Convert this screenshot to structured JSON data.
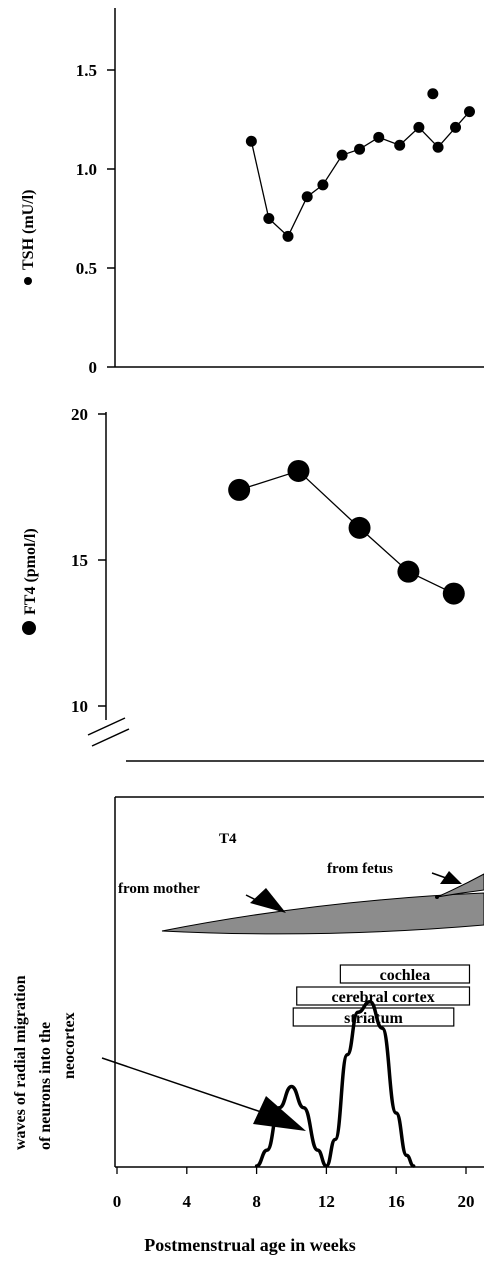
{
  "chart_data": [
    {
      "type": "line",
      "ylabel": "TSH (mU/l)",
      "ylabel_marker": "small-filled-circle",
      "ylim": [
        0,
        1.8
      ],
      "yticks": [
        "0",
        "0.5",
        "1.0",
        "1.5"
      ],
      "xlim": [
        0,
        21
      ],
      "series": [
        {
          "points": [
            {
              "x": 7.7,
              "y": 1.14
            },
            {
              "x": 8.7,
              "y": 0.75
            },
            {
              "x": 9.8,
              "y": 0.66
            },
            {
              "x": 10.9,
              "y": 0.86
            },
            {
              "x": 11.8,
              "y": 0.92
            },
            {
              "x": 12.9,
              "y": 1.07
            },
            {
              "x": 13.9,
              "y": 1.1
            },
            {
              "x": 15.0,
              "y": 1.16
            },
            {
              "x": 16.2,
              "y": 1.12
            },
            {
              "x": 17.3,
              "y": 1.21
            },
            {
              "x": 18.4,
              "y": 1.11
            },
            {
              "x": 19.4,
              "y": 1.21
            },
            {
              "x": 20.2,
              "y": 1.29
            }
          ]
        },
        {
          "points": [
            {
              "x": 18.1,
              "y": 1.38
            }
          ],
          "connected": false
        }
      ]
    },
    {
      "type": "line",
      "ylabel": "FT4 (pmol/l)",
      "ylabel_marker": "large-filled-circle",
      "ylim": [
        10,
        20
      ],
      "yticks": [
        "10",
        "15",
        "20"
      ],
      "axis_break": true,
      "xlim": [
        0,
        21
      ],
      "series": [
        {
          "points": [
            {
              "x": 7.0,
              "y": 17.4
            },
            {
              "x": 10.4,
              "y": 18.05
            },
            {
              "x": 13.9,
              "y": 16.1
            },
            {
              "x": 16.7,
              "y": 14.6
            },
            {
              "x": 19.3,
              "y": 13.85
            }
          ]
        }
      ]
    },
    {
      "type": "line",
      "ylabel": "waves of radial migration of neurons into the neocortex",
      "ylabel_lines": [
        "waves of radial migration",
        "of neurons into the",
        "neocortex"
      ],
      "xlabel": "Postmenstrual age in weeks",
      "xticks": [
        "0",
        "4",
        "8",
        "12",
        "16",
        "20"
      ],
      "xlim": [
        0,
        21
      ],
      "annotations": [
        "T4",
        "from mother",
        "from fetus"
      ],
      "bars": [
        {
          "label": "cochlea",
          "start": 12.8,
          "end": 20.2
        },
        {
          "label": "cerebral cortex",
          "start": 10.3,
          "end": 20.2
        },
        {
          "label": "striatum",
          "start": 10.1,
          "end": 19.3
        }
      ],
      "migration_curve": [
        {
          "x": 8.0,
          "y": 0.0
        },
        {
          "x": 8.6,
          "y": 0.06
        },
        {
          "x": 9.3,
          "y": 0.22
        },
        {
          "x": 10.0,
          "y": 0.3
        },
        {
          "x": 10.7,
          "y": 0.22
        },
        {
          "x": 11.5,
          "y": 0.06
        },
        {
          "x": 12.0,
          "y": 0.0
        },
        {
          "x": 12.5,
          "y": 0.1
        },
        {
          "x": 13.2,
          "y": 0.42
        },
        {
          "x": 13.8,
          "y": 0.58
        },
        {
          "x": 14.5,
          "y": 0.62
        },
        {
          "x": 15.2,
          "y": 0.52
        },
        {
          "x": 16.0,
          "y": 0.2
        },
        {
          "x": 16.6,
          "y": 0.04
        },
        {
          "x": 17.0,
          "y": 0.0
        }
      ]
    }
  ]
}
